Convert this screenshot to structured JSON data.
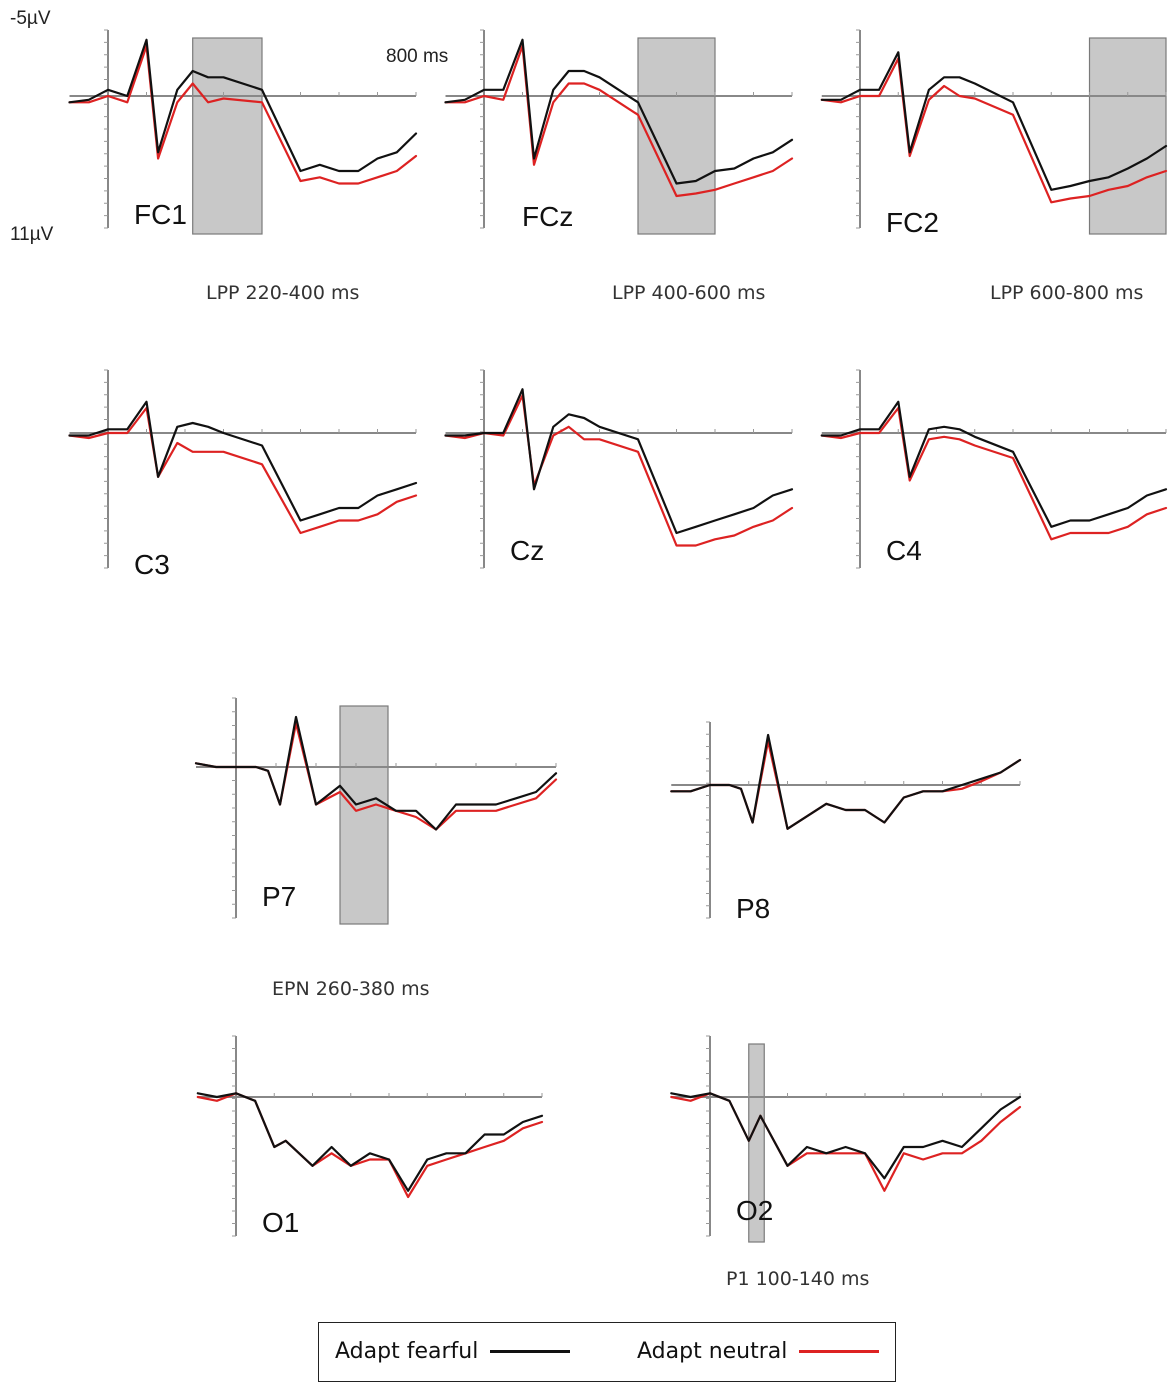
{
  "figure": {
    "scale_top_label": "-5µV",
    "scale_bottom_label": "11µV",
    "time_marker_label": "800 ms"
  },
  "legend": {
    "fearful_label": "Adapt fearful",
    "neutral_label": "Adapt neutral",
    "fearful_color": "#111111",
    "neutral_color": "#dd2222"
  },
  "window_labels": {
    "lpp_1": "LPP 220-400 ms",
    "lpp_2": "LPP 400-600 ms",
    "lpp_3": "LPP 600-800 ms",
    "epn": "EPN 260-380 ms",
    "p1": "P1 100-140 ms"
  },
  "chart_data": [
    {
      "type": "line",
      "electrode": "FC1",
      "highlight_ms": [
        220,
        400
      ],
      "ylim": [
        -5,
        11
      ],
      "y_inverted": true,
      "xlim": [
        -100,
        800
      ],
      "x": [
        -100,
        -50,
        0,
        50,
        100,
        130,
        180,
        220,
        260,
        300,
        400,
        500,
        550,
        600,
        650,
        700,
        750,
        800
      ],
      "series": [
        {
          "name": "Adapt fearful",
          "values": [
            0.5,
            0.3,
            -0.5,
            0,
            -4.5,
            4.5,
            -0.5,
            -2,
            -1.5,
            -1.5,
            -0.5,
            6,
            5.5,
            6,
            6,
            5,
            4.5,
            3
          ]
        },
        {
          "name": "Adapt neutral",
          "values": [
            0.5,
            0.5,
            0,
            0.5,
            -4,
            5,
            0.5,
            -1,
            0.5,
            0.2,
            0.5,
            6.8,
            6.5,
            7,
            7,
            6.5,
            6,
            4.8
          ]
        }
      ]
    },
    {
      "type": "line",
      "electrode": "FCz",
      "highlight_ms": [
        400,
        600
      ],
      "ylim": [
        -5,
        11
      ],
      "y_inverted": true,
      "xlim": [
        -100,
        800
      ],
      "x": [
        -100,
        -50,
        0,
        50,
        100,
        130,
        180,
        220,
        260,
        300,
        400,
        500,
        550,
        600,
        650,
        700,
        750,
        800
      ],
      "series": [
        {
          "name": "Adapt fearful",
          "values": [
            0.5,
            0.3,
            -0.5,
            -0.5,
            -4.5,
            5,
            -0.5,
            -2,
            -2,
            -1.5,
            0.5,
            7,
            6.8,
            6,
            5.8,
            5,
            4.5,
            3.5
          ]
        },
        {
          "name": "Adapt neutral",
          "values": [
            0.5,
            0.5,
            0,
            0.3,
            -4,
            5.5,
            0.5,
            -1,
            -1,
            -0.5,
            1.5,
            8,
            7.8,
            7.5,
            7,
            6.5,
            6,
            5
          ]
        }
      ]
    },
    {
      "type": "line",
      "electrode": "FC2",
      "highlight_ms": [
        600,
        800
      ],
      "ylim": [
        -5,
        11
      ],
      "y_inverted": true,
      "xlim": [
        -100,
        800
      ],
      "x": [
        -100,
        -50,
        0,
        50,
        100,
        130,
        180,
        220,
        260,
        300,
        400,
        500,
        550,
        600,
        650,
        700,
        750,
        800
      ],
      "series": [
        {
          "name": "Adapt fearful",
          "values": [
            0.3,
            0.3,
            -0.5,
            -0.5,
            -3.5,
            4.5,
            -0.5,
            -1.5,
            -1.5,
            -1,
            0.5,
            7.5,
            7.2,
            6.8,
            6.5,
            5.8,
            5,
            4
          ]
        },
        {
          "name": "Adapt neutral",
          "values": [
            0.3,
            0.5,
            0,
            0,
            -3,
            4.8,
            0.3,
            -0.8,
            0,
            0.2,
            1.5,
            8.5,
            8.2,
            8,
            7.5,
            7.2,
            6.5,
            6
          ]
        }
      ]
    },
    {
      "type": "line",
      "electrode": "C3",
      "ylim": [
        -5,
        11
      ],
      "y_inverted": true,
      "xlim": [
        -100,
        800
      ],
      "x": [
        -100,
        -50,
        0,
        50,
        100,
        130,
        180,
        220,
        260,
        300,
        400,
        500,
        550,
        600,
        650,
        700,
        750,
        800
      ],
      "series": [
        {
          "name": "Adapt fearful",
          "values": [
            0.2,
            0.2,
            -0.3,
            -0.3,
            -2.5,
            3.5,
            -0.5,
            -0.8,
            -0.5,
            0,
            1,
            7,
            6.5,
            6,
            6,
            5,
            4.5,
            4
          ]
        },
        {
          "name": "Adapt neutral",
          "values": [
            0.2,
            0.4,
            0,
            0,
            -2,
            3.5,
            0.8,
            1.5,
            1.5,
            1.5,
            2.5,
            8,
            7.5,
            7,
            7,
            6.5,
            5.5,
            5
          ]
        }
      ]
    },
    {
      "type": "line",
      "electrode": "Cz",
      "ylim": [
        -5,
        11
      ],
      "y_inverted": true,
      "xlim": [
        -100,
        800
      ],
      "x": [
        -100,
        -50,
        0,
        50,
        100,
        130,
        180,
        220,
        260,
        300,
        400,
        500,
        550,
        600,
        650,
        700,
        750,
        800
      ],
      "series": [
        {
          "name": "Adapt fearful",
          "values": [
            0.2,
            0.2,
            0,
            0,
            -3.5,
            4.5,
            -0.5,
            -1.5,
            -1.2,
            -0.5,
            0.5,
            8,
            7.5,
            7,
            6.5,
            6,
            5,
            4.5
          ]
        },
        {
          "name": "Adapt neutral",
          "values": [
            0.2,
            0.4,
            0,
            0.2,
            -3,
            4.2,
            0.2,
            -0.5,
            0.5,
            0.5,
            1.5,
            9,
            9,
            8.5,
            8.2,
            7.5,
            7,
            6
          ]
        }
      ]
    },
    {
      "type": "line",
      "electrode": "C4",
      "ylim": [
        -5,
        11
      ],
      "y_inverted": true,
      "xlim": [
        -100,
        800
      ],
      "x": [
        -100,
        -50,
        0,
        50,
        100,
        130,
        180,
        220,
        260,
        300,
        400,
        500,
        550,
        600,
        650,
        700,
        750,
        800
      ],
      "series": [
        {
          "name": "Adapt fearful",
          "values": [
            0.2,
            0.2,
            -0.3,
            -0.3,
            -2.5,
            3.5,
            -0.3,
            -0.5,
            -0.3,
            0.3,
            1.5,
            7.5,
            7,
            7,
            6.5,
            6,
            5,
            4.5
          ]
        },
        {
          "name": "Adapt neutral",
          "values": [
            0.2,
            0.4,
            0,
            0,
            -2,
            3.8,
            0.5,
            0.3,
            0.5,
            1,
            2,
            8.5,
            8,
            8,
            8,
            7.5,
            6.5,
            6
          ]
        }
      ]
    },
    {
      "type": "line",
      "electrode": "P7",
      "highlight_ms": [
        260,
        380
      ],
      "ylim": [
        -5,
        11
      ],
      "y_inverted": true,
      "xlim": [
        -100,
        800
      ],
      "x": [
        -100,
        -50,
        0,
        50,
        80,
        110,
        150,
        200,
        260,
        300,
        350,
        400,
        450,
        500,
        550,
        600,
        650,
        700,
        750,
        800
      ],
      "series": [
        {
          "name": "Adapt fearful",
          "values": [
            -0.3,
            0,
            0,
            0,
            0.3,
            3,
            -4,
            3,
            1.5,
            3,
            2.5,
            3.5,
            3.5,
            5,
            3,
            3,
            3,
            2.5,
            2,
            0.5
          ]
        },
        {
          "name": "Adapt neutral",
          "values": [
            -0.3,
            0,
            0,
            0,
            0.3,
            3,
            -3.5,
            3,
            2,
            3.5,
            3,
            3.5,
            4,
            5,
            3.5,
            3.5,
            3.5,
            3,
            2.5,
            1
          ]
        }
      ]
    },
    {
      "type": "line",
      "electrode": "P8",
      "ylim": [
        -5,
        11
      ],
      "y_inverted": true,
      "xlim": [
        -100,
        800
      ],
      "x": [
        -100,
        -50,
        0,
        50,
        80,
        110,
        150,
        200,
        250,
        300,
        350,
        400,
        450,
        500,
        550,
        600,
        650,
        700,
        750,
        800
      ],
      "series": [
        {
          "name": "Adapt fearful",
          "values": [
            0.5,
            0.5,
            0,
            0,
            0.3,
            3,
            -4,
            3.5,
            2.5,
            1.5,
            2,
            2,
            3,
            1,
            0.5,
            0.5,
            0,
            -0.5,
            -1,
            -2
          ]
        },
        {
          "name": "Adapt neutral",
          "values": [
            0.5,
            0.5,
            0,
            0,
            0.3,
            3,
            -3.5,
            3.5,
            2.5,
            1.5,
            2,
            2,
            3,
            1,
            0.5,
            0.5,
            0.3,
            -0.3,
            -1,
            -2
          ]
        }
      ]
    },
    {
      "type": "line",
      "electrode": "O1",
      "ylim": [
        -5,
        11
      ],
      "y_inverted": true,
      "xlim": [
        -100,
        800
      ],
      "x": [
        -100,
        -50,
        0,
        50,
        100,
        130,
        200,
        250,
        300,
        350,
        400,
        450,
        500,
        550,
        600,
        650,
        700,
        750,
        800
      ],
      "series": [
        {
          "name": "Adapt fearful",
          "values": [
            -0.3,
            0,
            -0.3,
            0.3,
            4,
            3.5,
            5.5,
            4,
            5.5,
            4.5,
            5,
            7.5,
            5,
            4.5,
            4.5,
            3,
            3,
            2,
            1.5
          ]
        },
        {
          "name": "Adapt neutral",
          "values": [
            0,
            0.3,
            -0.3,
            0.3,
            4,
            3.5,
            5.5,
            4.5,
            5.5,
            5,
            5,
            8,
            5.5,
            5,
            4.5,
            4,
            3.5,
            2.5,
            2
          ]
        }
      ]
    },
    {
      "type": "line",
      "electrode": "O2",
      "highlight_ms": [
        100,
        140
      ],
      "ylim": [
        -5,
        11
      ],
      "y_inverted": true,
      "xlim": [
        -100,
        800
      ],
      "x": [
        -100,
        -50,
        0,
        50,
        100,
        130,
        200,
        250,
        300,
        350,
        400,
        450,
        500,
        550,
        600,
        650,
        700,
        750,
        800
      ],
      "series": [
        {
          "name": "Adapt fearful",
          "values": [
            -0.3,
            0,
            -0.3,
            0.3,
            3.5,
            1.5,
            5.5,
            4,
            4.5,
            4,
            4.5,
            6.5,
            4,
            4,
            3.5,
            4,
            2.5,
            1,
            0
          ]
        },
        {
          "name": "Adapt neutral",
          "values": [
            0,
            0.3,
            -0.3,
            0.3,
            3.5,
            1.5,
            5.5,
            4.5,
            4.5,
            4.5,
            4.5,
            7.5,
            4.5,
            5,
            4.5,
            4.5,
            3.5,
            2,
            0.8
          ]
        }
      ]
    }
  ]
}
